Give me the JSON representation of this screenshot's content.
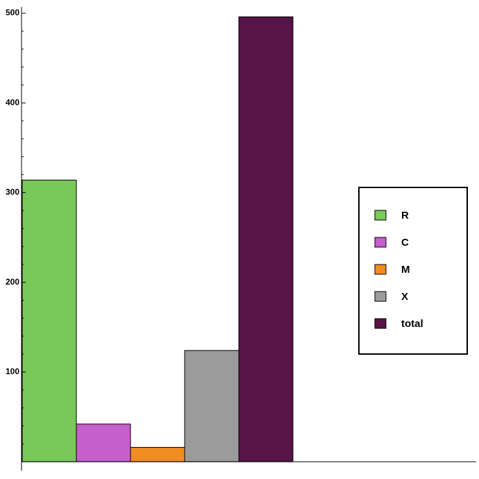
{
  "chart_data": {
    "type": "bar",
    "series": [
      {
        "name": "R",
        "color": "#78c85a",
        "values": [
          314
        ]
      },
      {
        "name": "C",
        "color": "#c55fc9",
        "values": [
          42
        ]
      },
      {
        "name": "M",
        "color": "#ef8c24",
        "values": [
          16
        ]
      },
      {
        "name": "X",
        "color": "#9b9b9b",
        "values": [
          124
        ]
      },
      {
        "name": "total",
        "color": "#571446",
        "values": [
          496
        ]
      }
    ],
    "ylim": [
      -10,
      507
    ],
    "yticks": [
      100,
      200,
      300,
      400,
      500
    ],
    "yminorticks": [
      20,
      40,
      60,
      80,
      120,
      140,
      160,
      180,
      220,
      240,
      260,
      280,
      320,
      340,
      360,
      380,
      420,
      440,
      460,
      480
    ],
    "legend": "right"
  }
}
